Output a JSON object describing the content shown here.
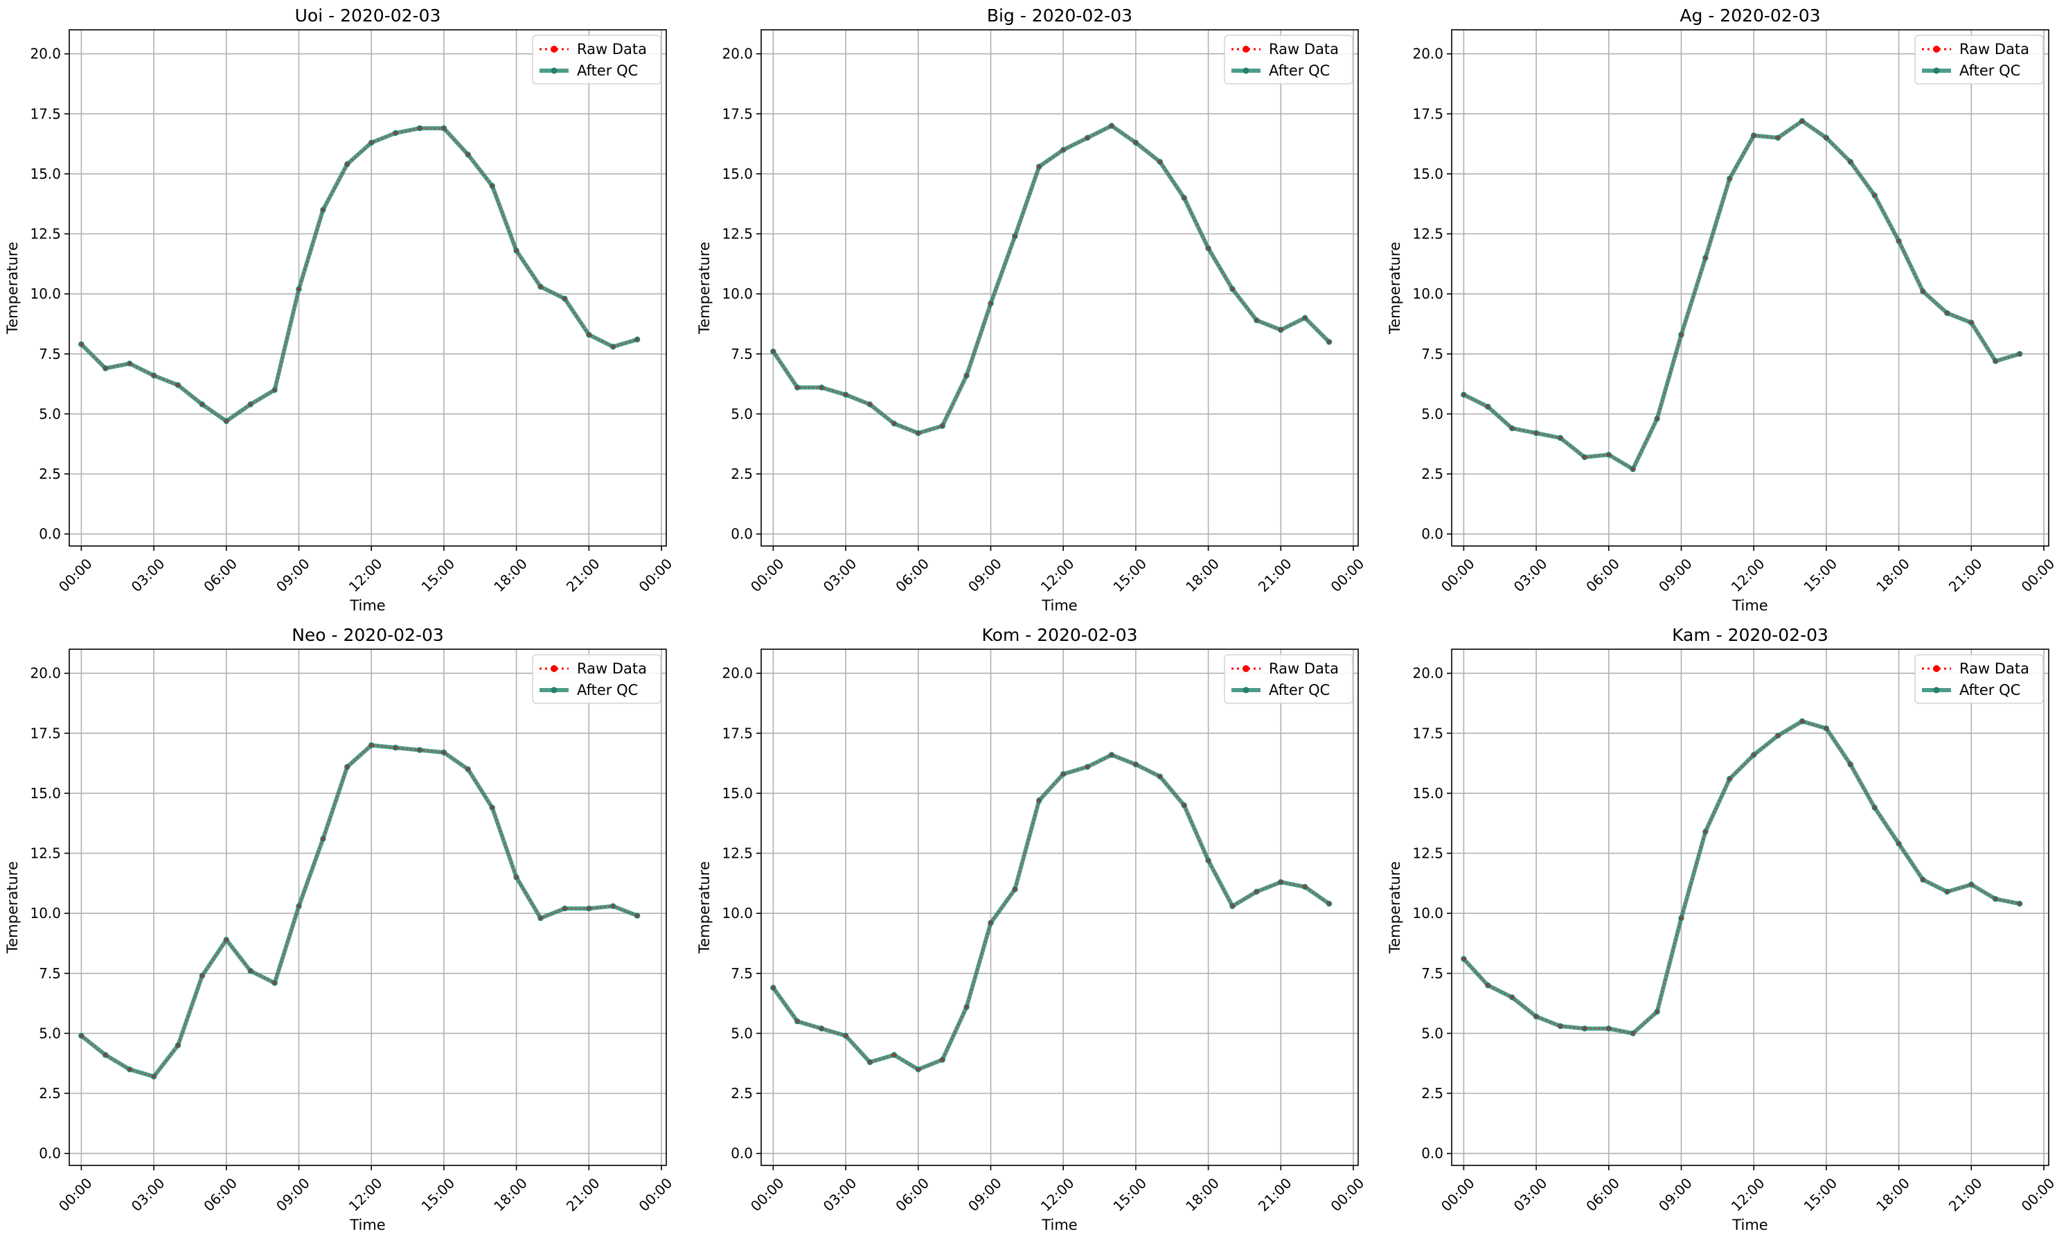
{
  "chart_data": [
    {
      "type": "line",
      "title": "Uoi - 2020-02-03",
      "xlabel": "Time",
      "ylabel": "Temperature",
      "ylim": [
        -0.5,
        21
      ],
      "yticks": [
        0.0,
        2.5,
        5.0,
        7.5,
        10.0,
        12.5,
        15.0,
        17.5,
        20.0
      ],
      "ytick_labels": [
        "0.0",
        "2.5",
        "5.0",
        "7.5",
        "10.0",
        "12.5",
        "15.0",
        "17.5",
        "20.0"
      ],
      "xlim": [
        -0.5,
        24.2
      ],
      "xticks": [
        0,
        3,
        6,
        9,
        12,
        15,
        18,
        21,
        24
      ],
      "xtick_labels": [
        "00:00",
        "03:00",
        "06:00",
        "09:00",
        "12:00",
        "15:00",
        "18:00",
        "21:00",
        "00:00"
      ],
      "grid": true,
      "legend": "top-right",
      "x": [
        0,
        1,
        2,
        3,
        4,
        5,
        6,
        7,
        8,
        9,
        10,
        11,
        12,
        13,
        14,
        15,
        16,
        17,
        18,
        19,
        20,
        21,
        22,
        23
      ],
      "series": [
        {
          "name": "Raw Data",
          "color": "#ff0000",
          "style": "dotted",
          "values": [
            7.9,
            6.9,
            7.1,
            6.6,
            6.2,
            5.4,
            4.7,
            5.4,
            6.0,
            10.2,
            13.5,
            15.4,
            16.3,
            16.7,
            16.9,
            16.9,
            15.8,
            14.5,
            11.8,
            10.3,
            9.8,
            8.3,
            7.8,
            8.1
          ]
        },
        {
          "name": "After QC",
          "color": "#2e8b74",
          "style": "solid",
          "values": [
            7.9,
            6.9,
            7.1,
            6.6,
            6.2,
            5.4,
            4.7,
            5.4,
            6.0,
            10.2,
            13.5,
            15.4,
            16.3,
            16.7,
            16.9,
            16.9,
            15.8,
            14.5,
            11.8,
            10.3,
            9.8,
            8.3,
            7.8,
            8.1
          ]
        }
      ]
    },
    {
      "type": "line",
      "title": "Big - 2020-02-03",
      "xlabel": "Time",
      "ylabel": "Temperature",
      "ylim": [
        -0.5,
        21
      ],
      "yticks": [
        0.0,
        2.5,
        5.0,
        7.5,
        10.0,
        12.5,
        15.0,
        17.5,
        20.0
      ],
      "ytick_labels": [
        "0.0",
        "2.5",
        "5.0",
        "7.5",
        "10.0",
        "12.5",
        "15.0",
        "17.5",
        "20.0"
      ],
      "xlim": [
        -0.5,
        24.2
      ],
      "xticks": [
        0,
        3,
        6,
        9,
        12,
        15,
        18,
        21,
        24
      ],
      "xtick_labels": [
        "00:00",
        "03:00",
        "06:00",
        "09:00",
        "12:00",
        "15:00",
        "18:00",
        "21:00",
        "00:00"
      ],
      "grid": true,
      "legend": "top-right",
      "x": [
        0,
        1,
        2,
        3,
        4,
        5,
        6,
        7,
        8,
        9,
        10,
        11,
        12,
        13,
        14,
        15,
        16,
        17,
        18,
        19,
        20,
        21,
        22,
        23
      ],
      "series": [
        {
          "name": "Raw Data",
          "color": "#ff0000",
          "style": "dotted",
          "values": [
            7.6,
            6.1,
            6.1,
            5.8,
            5.4,
            4.6,
            4.2,
            4.5,
            6.6,
            9.6,
            12.4,
            15.3,
            16.0,
            16.5,
            17.0,
            16.3,
            15.5,
            14.0,
            11.9,
            10.2,
            8.9,
            8.5,
            9.0,
            8.0
          ]
        },
        {
          "name": "After QC",
          "color": "#2e8b74",
          "style": "solid",
          "values": [
            7.6,
            6.1,
            6.1,
            5.8,
            5.4,
            4.6,
            4.2,
            4.5,
            6.6,
            9.6,
            12.4,
            15.3,
            16.0,
            16.5,
            17.0,
            16.3,
            15.5,
            14.0,
            11.9,
            10.2,
            8.9,
            8.5,
            9.0,
            8.0
          ]
        }
      ]
    },
    {
      "type": "line",
      "title": "Ag - 2020-02-03",
      "xlabel": "Time",
      "ylabel": "Temperature",
      "ylim": [
        -0.5,
        21
      ],
      "yticks": [
        0.0,
        2.5,
        5.0,
        7.5,
        10.0,
        12.5,
        15.0,
        17.5,
        20.0
      ],
      "ytick_labels": [
        "0.0",
        "2.5",
        "5.0",
        "7.5",
        "10.0",
        "12.5",
        "15.0",
        "17.5",
        "20.0"
      ],
      "xlim": [
        -0.5,
        24.2
      ],
      "xticks": [
        0,
        3,
        6,
        9,
        12,
        15,
        18,
        21,
        24
      ],
      "xtick_labels": [
        "00:00",
        "03:00",
        "06:00",
        "09:00",
        "12:00",
        "15:00",
        "18:00",
        "21:00",
        "00:00"
      ],
      "grid": true,
      "legend": "top-right",
      "x": [
        0,
        1,
        2,
        3,
        4,
        5,
        6,
        7,
        8,
        9,
        10,
        11,
        12,
        13,
        14,
        15,
        16,
        17,
        18,
        19,
        20,
        21,
        22,
        23
      ],
      "series": [
        {
          "name": "Raw Data",
          "color": "#ff0000",
          "style": "dotted",
          "values": [
            5.8,
            5.3,
            4.4,
            4.2,
            4.0,
            3.2,
            3.3,
            2.7,
            4.8,
            8.3,
            11.5,
            14.8,
            16.6,
            16.5,
            17.2,
            16.5,
            15.5,
            14.1,
            12.2,
            10.1,
            9.2,
            8.8,
            7.2,
            7.5
          ]
        },
        {
          "name": "After QC",
          "color": "#2e8b74",
          "style": "solid",
          "values": [
            5.8,
            5.3,
            4.4,
            4.2,
            4.0,
            3.2,
            3.3,
            2.7,
            4.8,
            8.3,
            11.5,
            14.8,
            16.6,
            16.5,
            17.2,
            16.5,
            15.5,
            14.1,
            12.2,
            10.1,
            9.2,
            8.8,
            7.2,
            7.5
          ]
        }
      ]
    },
    {
      "type": "line",
      "title": "Neo - 2020-02-03",
      "xlabel": "Time",
      "ylabel": "Temperature",
      "ylim": [
        -0.5,
        21
      ],
      "yticks": [
        0.0,
        2.5,
        5.0,
        7.5,
        10.0,
        12.5,
        15.0,
        17.5,
        20.0
      ],
      "ytick_labels": [
        "0.0",
        "2.5",
        "5.0",
        "7.5",
        "10.0",
        "12.5",
        "15.0",
        "17.5",
        "20.0"
      ],
      "xlim": [
        -0.5,
        24.2
      ],
      "xticks": [
        0,
        3,
        6,
        9,
        12,
        15,
        18,
        21,
        24
      ],
      "xtick_labels": [
        "00:00",
        "03:00",
        "06:00",
        "09:00",
        "12:00",
        "15:00",
        "18:00",
        "21:00",
        "00:00"
      ],
      "grid": true,
      "legend": "top-right",
      "x": [
        0,
        1,
        2,
        3,
        4,
        5,
        6,
        7,
        8,
        9,
        10,
        11,
        12,
        13,
        14,
        15,
        16,
        17,
        18,
        19,
        20,
        21,
        22,
        23
      ],
      "series": [
        {
          "name": "Raw Data",
          "color": "#ff0000",
          "style": "dotted",
          "values": [
            4.9,
            4.1,
            3.5,
            3.2,
            4.5,
            7.4,
            8.9,
            7.6,
            7.1,
            10.3,
            13.1,
            16.1,
            17.0,
            16.9,
            16.8,
            16.7,
            16.0,
            14.4,
            11.5,
            9.8,
            10.2,
            10.2,
            10.3,
            9.9
          ]
        },
        {
          "name": "After QC",
          "color": "#2e8b74",
          "style": "solid",
          "values": [
            4.9,
            4.1,
            3.5,
            3.2,
            4.5,
            7.4,
            8.9,
            7.6,
            7.1,
            10.3,
            13.1,
            16.1,
            17.0,
            16.9,
            16.8,
            16.7,
            16.0,
            14.4,
            11.5,
            9.8,
            10.2,
            10.2,
            10.3,
            9.9
          ]
        }
      ]
    },
    {
      "type": "line",
      "title": "Kom - 2020-02-03",
      "xlabel": "Time",
      "ylabel": "Temperature",
      "ylim": [
        -0.5,
        21
      ],
      "yticks": [
        0.0,
        2.5,
        5.0,
        7.5,
        10.0,
        12.5,
        15.0,
        17.5,
        20.0
      ],
      "ytick_labels": [
        "0.0",
        "2.5",
        "5.0",
        "7.5",
        "10.0",
        "12.5",
        "15.0",
        "17.5",
        "20.0"
      ],
      "xlim": [
        -0.5,
        24.2
      ],
      "xticks": [
        0,
        3,
        6,
        9,
        12,
        15,
        18,
        21,
        24
      ],
      "xtick_labels": [
        "00:00",
        "03:00",
        "06:00",
        "09:00",
        "12:00",
        "15:00",
        "18:00",
        "21:00",
        "00:00"
      ],
      "grid": true,
      "legend": "top-right",
      "x": [
        0,
        1,
        2,
        3,
        4,
        5,
        6,
        7,
        8,
        9,
        10,
        11,
        12,
        13,
        14,
        15,
        16,
        17,
        18,
        19,
        20,
        21,
        22,
        23
      ],
      "series": [
        {
          "name": "Raw Data",
          "color": "#ff0000",
          "style": "dotted",
          "values": [
            6.9,
            5.5,
            5.2,
            4.9,
            3.8,
            4.1,
            3.5,
            3.9,
            6.1,
            9.6,
            11.0,
            14.7,
            15.8,
            16.1,
            16.6,
            16.2,
            15.7,
            14.5,
            12.2,
            10.3,
            10.9,
            11.3,
            11.1,
            10.4
          ]
        },
        {
          "name": "After QC",
          "color": "#2e8b74",
          "style": "solid",
          "values": [
            6.9,
            5.5,
            5.2,
            4.9,
            3.8,
            4.1,
            3.5,
            3.9,
            6.1,
            9.6,
            11.0,
            14.7,
            15.8,
            16.1,
            16.6,
            16.2,
            15.7,
            14.5,
            12.2,
            10.3,
            10.9,
            11.3,
            11.1,
            10.4
          ]
        }
      ]
    },
    {
      "type": "line",
      "title": "Kam - 2020-02-03",
      "xlabel": "Time",
      "ylabel": "Temperature",
      "ylim": [
        -0.5,
        21
      ],
      "yticks": [
        0.0,
        2.5,
        5.0,
        7.5,
        10.0,
        12.5,
        15.0,
        17.5,
        20.0
      ],
      "ytick_labels": [
        "0.0",
        "2.5",
        "5.0",
        "7.5",
        "10.0",
        "12.5",
        "15.0",
        "17.5",
        "20.0"
      ],
      "xlim": [
        -0.5,
        24.2
      ],
      "xticks": [
        0,
        3,
        6,
        9,
        12,
        15,
        18,
        21,
        24
      ],
      "xtick_labels": [
        "00:00",
        "03:00",
        "06:00",
        "09:00",
        "12:00",
        "15:00",
        "18:00",
        "21:00",
        "00:00"
      ],
      "grid": true,
      "legend": "top-right",
      "x": [
        0,
        1,
        2,
        3,
        4,
        5,
        6,
        7,
        8,
        9,
        10,
        11,
        12,
        13,
        14,
        15,
        16,
        17,
        18,
        19,
        20,
        21,
        22,
        23
      ],
      "series": [
        {
          "name": "Raw Data",
          "color": "#ff0000",
          "style": "dotted",
          "values": [
            8.1,
            7.0,
            6.5,
            5.7,
            5.3,
            5.2,
            5.2,
            5.0,
            5.9,
            9.8,
            13.4,
            15.6,
            16.6,
            17.4,
            18.0,
            17.7,
            16.2,
            14.4,
            12.9,
            11.4,
            10.9,
            11.2,
            10.6,
            10.4
          ]
        },
        {
          "name": "After QC",
          "color": "#2e8b74",
          "style": "solid",
          "values": [
            8.1,
            7.0,
            6.5,
            5.7,
            5.3,
            5.2,
            5.2,
            5.0,
            5.9,
            9.8,
            13.4,
            15.6,
            16.6,
            17.4,
            18.0,
            17.7,
            16.2,
            14.4,
            12.9,
            11.4,
            10.9,
            11.2,
            10.6,
            10.4
          ]
        }
      ]
    }
  ]
}
